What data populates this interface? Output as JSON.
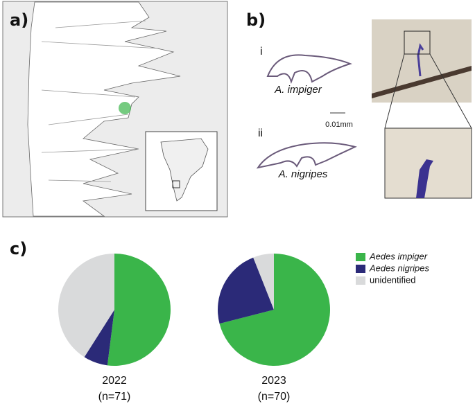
{
  "panels": {
    "a": "a)",
    "b": "b)",
    "c": "c)"
  },
  "claws": {
    "i": "i",
    "i_name": "A. impiger",
    "ii": "ii",
    "ii_name": "A. nigripes",
    "scale": "0.01mm"
  },
  "chart_data": {
    "type": "pie",
    "categories": [
      "Aedes impiger",
      "Aedes nigripes",
      "unidentified"
    ],
    "colors": [
      "#3ab54a",
      "#2b2a78",
      "#d9dadb"
    ],
    "series": [
      {
        "name": "2022",
        "n_label": "(n=71)",
        "values": [
          52,
          7,
          41
        ]
      },
      {
        "name": "2023",
        "n_label": "(n=70)",
        "values": [
          71,
          23,
          6
        ]
      }
    ]
  }
}
